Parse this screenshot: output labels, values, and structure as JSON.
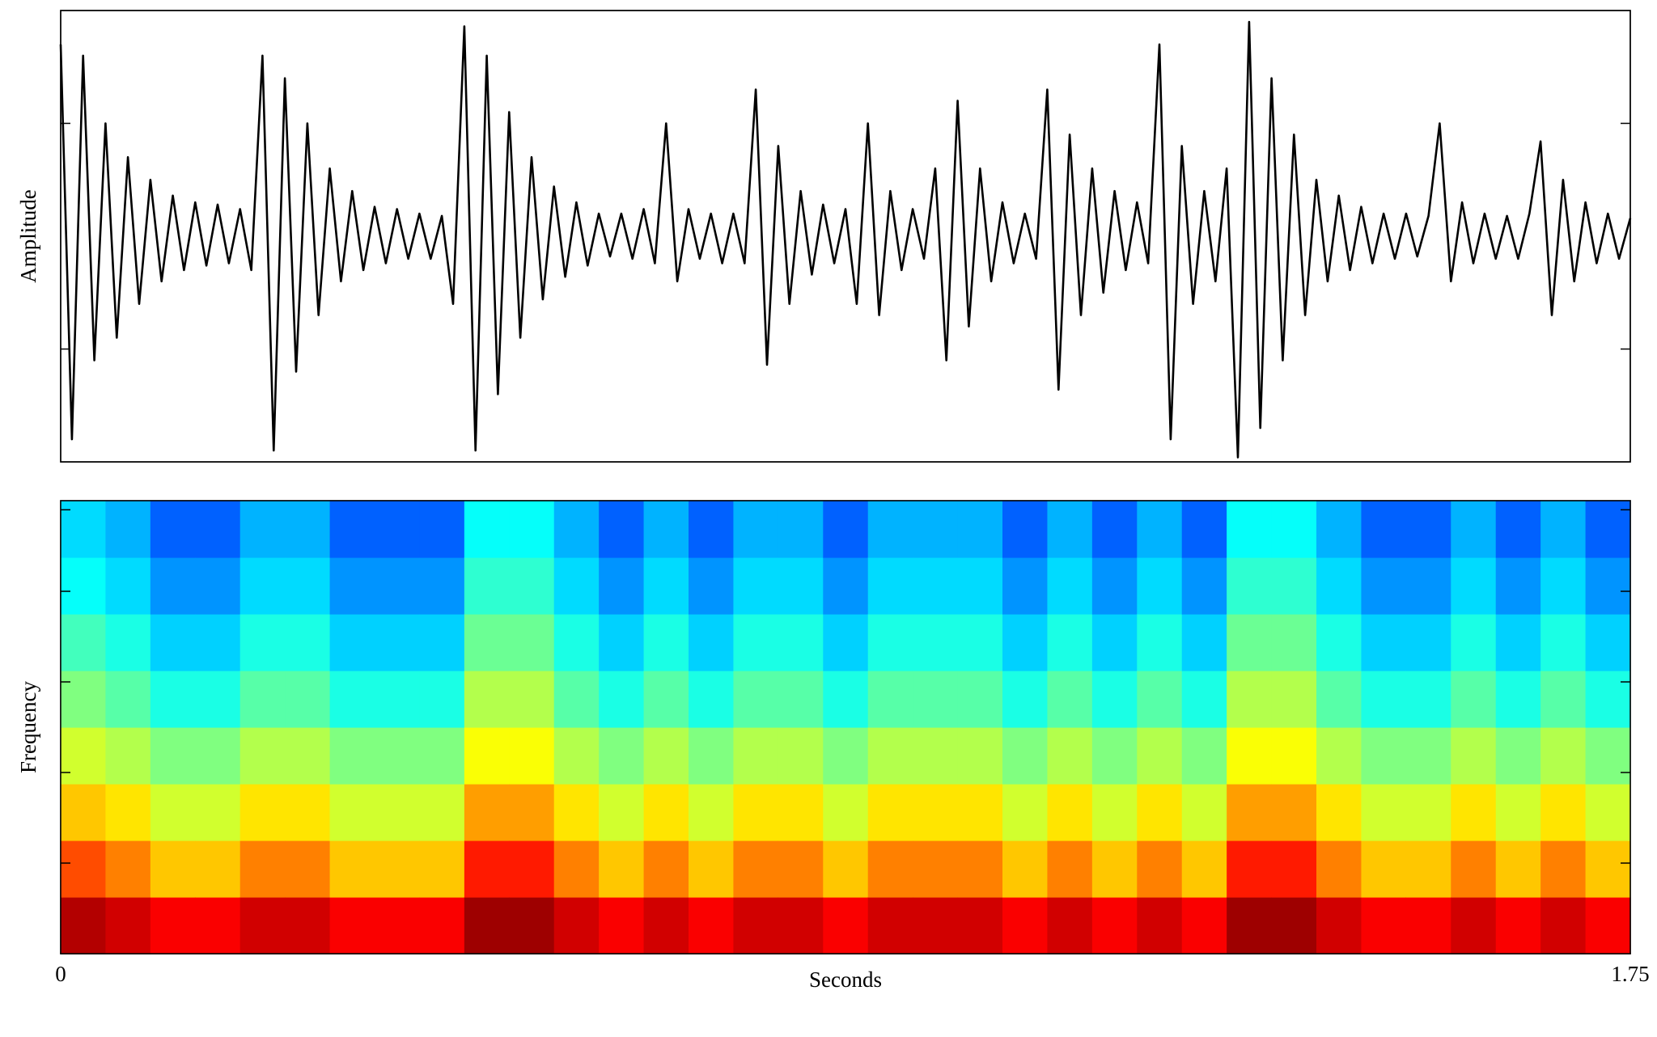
{
  "chart_data": [
    {
      "type": "line",
      "ylabel": "Amplitude",
      "color": "#000000",
      "xlim": [
        0,
        1.75
      ],
      "ylim": [
        -1,
        1
      ],
      "yticks": [
        -0.5,
        0.5
      ],
      "x": [
        0,
        0.0125,
        0.025,
        0.0375,
        0.05,
        0.0625,
        0.075,
        0.0875,
        0.1,
        0.1125,
        0.125,
        0.1375,
        0.15,
        0.1625,
        0.175,
        0.1875,
        0.2,
        0.2125,
        0.225,
        0.2375,
        0.25,
        0.2625,
        0.275,
        0.2875,
        0.3,
        0.3125,
        0.325,
        0.3375,
        0.35,
        0.3625,
        0.375,
        0.3875,
        0.4,
        0.4125,
        0.425,
        0.4375,
        0.45,
        0.4625,
        0.475,
        0.4875,
        0.5,
        0.5125,
        0.525,
        0.5375,
        0.55,
        0.5625,
        0.575,
        0.5875,
        0.6,
        0.6125,
        0.625,
        0.6375,
        0.65,
        0.6625,
        0.675,
        0.6875,
        0.7,
        0.7125,
        0.725,
        0.7375,
        0.75,
        0.7625,
        0.775,
        0.7875,
        0.8,
        0.8125,
        0.825,
        0.8375,
        0.85,
        0.8625,
        0.875,
        0.8875,
        0.9,
        0.9125,
        0.925,
        0.9375,
        0.95,
        0.9625,
        0.975,
        0.9875,
        1,
        1.0125,
        1.025,
        1.0375,
        1.05,
        1.0625,
        1.075,
        1.0875,
        1.1,
        1.1125,
        1.125,
        1.1375,
        1.15,
        1.1625,
        1.175,
        1.1875,
        1.2,
        1.2125,
        1.225,
        1.2375,
        1.25,
        1.2625,
        1.275,
        1.2875,
        1.3,
        1.3125,
        1.325,
        1.3375,
        1.35,
        1.3625,
        1.375,
        1.3875,
        1.4,
        1.4125,
        1.425,
        1.4375,
        1.45,
        1.4625,
        1.475,
        1.4875,
        1.5,
        1.5125,
        1.525,
        1.5375,
        1.55,
        1.5625,
        1.575,
        1.5875,
        1.6,
        1.6125,
        1.625,
        1.6375,
        1.65,
        1.6625,
        1.675,
        1.6875,
        1.7,
        1.7125,
        1.725,
        1.7375,
        1.75
      ],
      "values": [
        0.85,
        -0.9,
        0.8,
        -0.55,
        0.5,
        -0.45,
        0.35,
        -0.3,
        0.25,
        -0.2,
        0.18,
        -0.15,
        0.15,
        -0.13,
        0.14,
        -0.12,
        0.12,
        -0.15,
        0.8,
        -0.95,
        0.7,
        -0.6,
        0.5,
        -0.35,
        0.3,
        -0.2,
        0.2,
        -0.15,
        0.13,
        -0.12,
        0.12,
        -0.1,
        0.1,
        -0.1,
        0.09,
        -0.3,
        0.93,
        -0.95,
        0.8,
        -0.7,
        0.55,
        -0.45,
        0.35,
        -0.28,
        0.22,
        -0.18,
        0.15,
        -0.13,
        0.1,
        -0.09,
        0.1,
        -0.1,
        0.12,
        -0.12,
        0.5,
        -0.2,
        0.12,
        -0.1,
        0.1,
        -0.12,
        0.1,
        -0.12,
        0.65,
        -0.57,
        0.4,
        -0.3,
        0.2,
        -0.17,
        0.14,
        -0.12,
        0.12,
        -0.3,
        0.5,
        -0.35,
        0.2,
        -0.15,
        0.12,
        -0.1,
        0.3,
        -0.55,
        0.6,
        -0.4,
        0.3,
        -0.2,
        0.15,
        -0.12,
        0.1,
        -0.1,
        0.65,
        -0.68,
        0.45,
        -0.35,
        0.3,
        -0.25,
        0.2,
        -0.15,
        0.15,
        -0.12,
        0.85,
        -0.9,
        0.4,
        -0.3,
        0.2,
        -0.2,
        0.3,
        -0.98,
        0.95,
        -0.85,
        0.7,
        -0.55,
        0.45,
        -0.35,
        0.25,
        -0.2,
        0.18,
        -0.15,
        0.13,
        -0.12,
        0.1,
        -0.1,
        0.1,
        -0.09,
        0.09,
        0.5,
        -0.2,
        0.15,
        -0.12,
        0.1,
        -0.1,
        0.09,
        -0.1,
        0.1,
        0.42,
        -0.35,
        0.25,
        -0.2,
        0.15,
        -0.12,
        0.1,
        -0.1,
        0.08
      ]
    },
    {
      "type": "heatmap",
      "ylabel": "Frequency",
      "xlabel": "Seconds",
      "colormap": "jet",
      "xlim": [
        0,
        1.75
      ],
      "xticks": [
        0,
        1.75
      ],
      "ylim": [
        0,
        1
      ],
      "yticks": [
        0.2,
        0.4,
        0.6,
        0.8,
        0.98
      ],
      "z": [
        [
          0.95,
          0.8,
          0.68,
          0.58,
          0.5,
          0.44,
          0.38,
          0.34
        ],
        [
          0.92,
          0.75,
          0.65,
          0.55,
          0.46,
          0.4,
          0.34,
          0.3
        ],
        [
          0.88,
          0.68,
          0.58,
          0.5,
          0.4,
          0.33,
          0.27,
          0.22
        ],
        [
          0.88,
          0.68,
          0.58,
          0.5,
          0.4,
          0.33,
          0.27,
          0.22
        ],
        [
          0.92,
          0.75,
          0.65,
          0.55,
          0.46,
          0.4,
          0.34,
          0.3
        ],
        [
          0.92,
          0.75,
          0.65,
          0.55,
          0.46,
          0.4,
          0.34,
          0.3
        ],
        [
          0.88,
          0.68,
          0.58,
          0.5,
          0.4,
          0.33,
          0.27,
          0.22
        ],
        [
          0.88,
          0.68,
          0.58,
          0.5,
          0.4,
          0.33,
          0.27,
          0.22
        ],
        [
          0.88,
          0.68,
          0.58,
          0.5,
          0.4,
          0.33,
          0.27,
          0.22
        ],
        [
          0.97,
          0.85,
          0.72,
          0.62,
          0.55,
          0.48,
          0.42,
          0.38
        ],
        [
          0.97,
          0.85,
          0.72,
          0.62,
          0.55,
          0.48,
          0.42,
          0.38
        ],
        [
          0.92,
          0.75,
          0.65,
          0.55,
          0.46,
          0.4,
          0.34,
          0.3
        ],
        [
          0.88,
          0.68,
          0.58,
          0.5,
          0.4,
          0.33,
          0.27,
          0.22
        ],
        [
          0.92,
          0.75,
          0.65,
          0.55,
          0.46,
          0.4,
          0.34,
          0.3
        ],
        [
          0.88,
          0.68,
          0.58,
          0.5,
          0.4,
          0.33,
          0.27,
          0.22
        ],
        [
          0.92,
          0.75,
          0.65,
          0.55,
          0.46,
          0.4,
          0.34,
          0.3
        ],
        [
          0.92,
          0.75,
          0.65,
          0.55,
          0.46,
          0.4,
          0.34,
          0.3
        ],
        [
          0.88,
          0.68,
          0.58,
          0.5,
          0.4,
          0.33,
          0.27,
          0.22
        ],
        [
          0.92,
          0.75,
          0.65,
          0.55,
          0.46,
          0.4,
          0.34,
          0.3
        ],
        [
          0.92,
          0.75,
          0.65,
          0.55,
          0.46,
          0.4,
          0.34,
          0.3
        ],
        [
          0.92,
          0.75,
          0.65,
          0.55,
          0.46,
          0.4,
          0.34,
          0.3
        ],
        [
          0.88,
          0.68,
          0.58,
          0.5,
          0.4,
          0.33,
          0.27,
          0.22
        ],
        [
          0.92,
          0.75,
          0.65,
          0.55,
          0.46,
          0.4,
          0.34,
          0.3
        ],
        [
          0.88,
          0.68,
          0.58,
          0.5,
          0.4,
          0.33,
          0.27,
          0.22
        ],
        [
          0.92,
          0.75,
          0.65,
          0.55,
          0.46,
          0.4,
          0.34,
          0.3
        ],
        [
          0.88,
          0.68,
          0.58,
          0.5,
          0.4,
          0.33,
          0.27,
          0.22
        ],
        [
          0.97,
          0.85,
          0.72,
          0.62,
          0.55,
          0.48,
          0.42,
          0.38
        ],
        [
          0.97,
          0.85,
          0.72,
          0.62,
          0.55,
          0.48,
          0.42,
          0.38
        ],
        [
          0.92,
          0.75,
          0.65,
          0.55,
          0.46,
          0.4,
          0.34,
          0.3
        ],
        [
          0.88,
          0.68,
          0.58,
          0.5,
          0.4,
          0.33,
          0.27,
          0.22
        ],
        [
          0.88,
          0.68,
          0.58,
          0.5,
          0.4,
          0.33,
          0.27,
          0.22
        ],
        [
          0.92,
          0.75,
          0.65,
          0.55,
          0.46,
          0.4,
          0.34,
          0.3
        ],
        [
          0.88,
          0.68,
          0.58,
          0.5,
          0.4,
          0.33,
          0.27,
          0.22
        ],
        [
          0.92,
          0.75,
          0.65,
          0.55,
          0.46,
          0.4,
          0.34,
          0.3
        ],
        [
          0.88,
          0.68,
          0.58,
          0.5,
          0.4,
          0.33,
          0.27,
          0.22
        ]
      ]
    }
  ]
}
